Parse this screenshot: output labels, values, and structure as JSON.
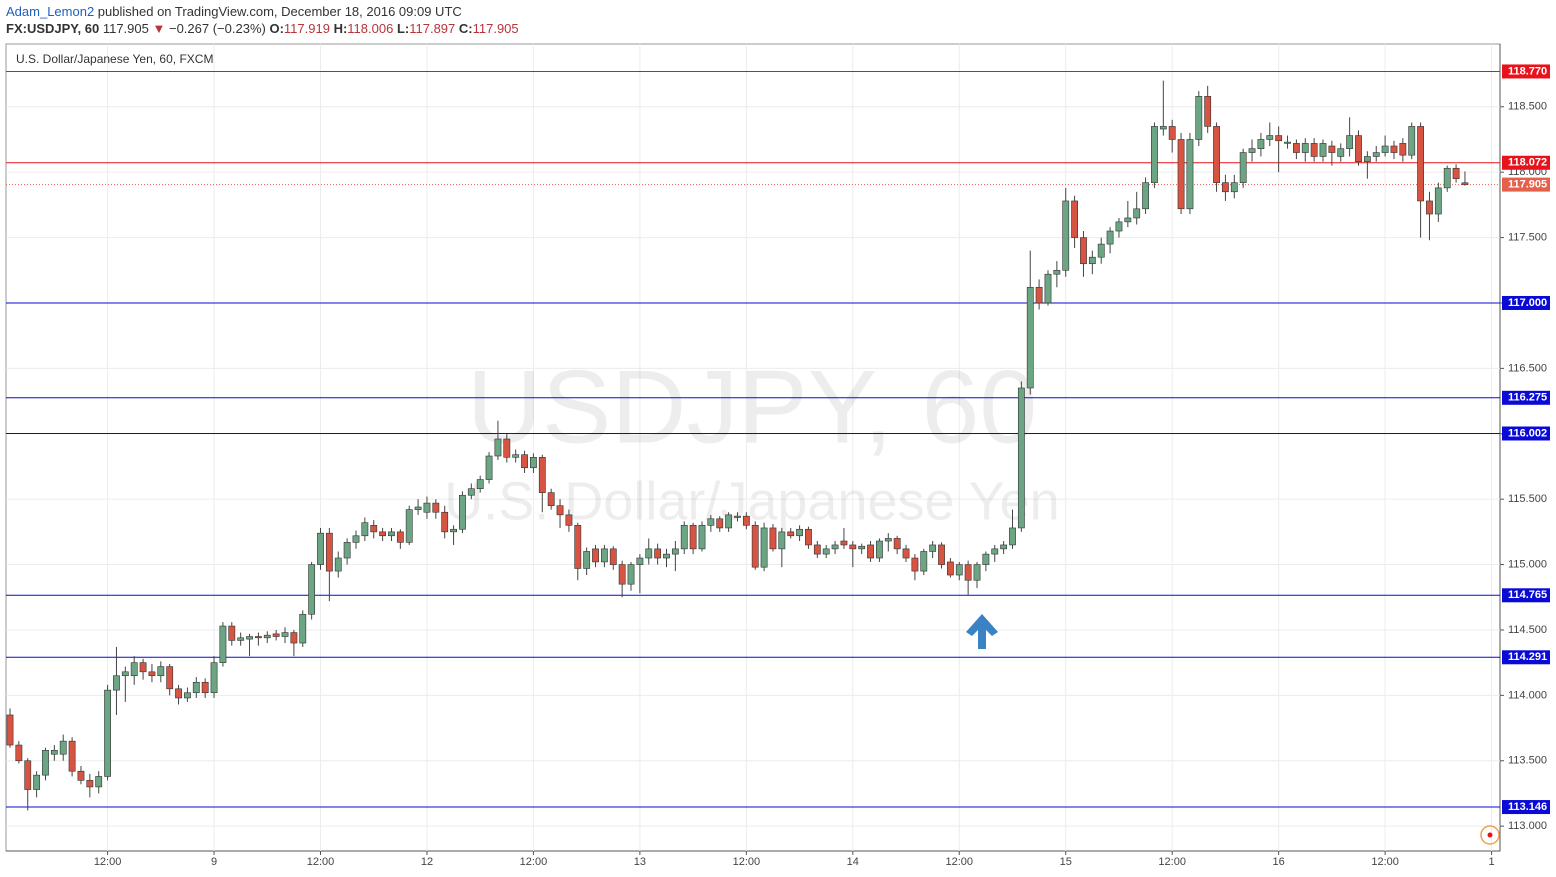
{
  "header": {
    "author": "Adam_Lemon2",
    "published": "published on TradingView.com, December 18, 2016 09:09 UTC",
    "symbol": "FX:USDJPY, 60",
    "last": "117.905",
    "change_icon": "▼",
    "change": "−0.267 (−0.23%)",
    "ohlc": [
      {
        "label": "O:",
        "value": "117.919"
      },
      {
        "label": "H:",
        "value": "118.006"
      },
      {
        "label": "L:",
        "value": "117.897"
      },
      {
        "label": "C:",
        "value": "117.905"
      }
    ]
  },
  "chart_data": {
    "type": "candlestick",
    "title": "U.S. Dollar/Japanese Yen, 60, FXCM",
    "watermark": "USDJPY, 60",
    "watermark_sub": "U.S. Dollar/Japanese Yen",
    "up_color": "#6ba583",
    "down_color": "#d75442",
    "grid": true,
    "ylim": [
      112.81,
      118.98
    ],
    "yticks": [
      {
        "value": 113,
        "label": "113.000"
      },
      {
        "value": 113.5,
        "label": "113.500"
      },
      {
        "value": 114,
        "label": "114.000"
      },
      {
        "value": 114.5,
        "label": "114.500"
      },
      {
        "value": 115,
        "label": "115.000"
      },
      {
        "value": 115.5,
        "label": "115.500"
      },
      {
        "value": 116,
        "label": "116.000"
      },
      {
        "value": 116.5,
        "label": "116.500"
      },
      {
        "value": 117,
        "label": "117.000"
      },
      {
        "value": 117.5,
        "label": "117.500"
      },
      {
        "value": 118,
        "label": "118.000"
      },
      {
        "value": 118.5,
        "label": "118.500"
      }
    ],
    "xlim": [
      -0.45,
      167.95
    ],
    "xticks": [
      {
        "value": 11,
        "label": "12:00"
      },
      {
        "value": 23,
        "label": "9"
      },
      {
        "value": 35,
        "label": "12:00"
      },
      {
        "value": 47,
        "label": "12"
      },
      {
        "value": 59,
        "label": "12:00"
      },
      {
        "value": 71,
        "label": "13"
      },
      {
        "value": 83,
        "label": "12:00"
      },
      {
        "value": 95,
        "label": "14"
      },
      {
        "value": 107,
        "label": "12:00"
      },
      {
        "value": 119,
        "label": "15"
      },
      {
        "value": 131,
        "label": "12:00"
      },
      {
        "value": 143,
        "label": "16"
      },
      {
        "value": 155,
        "label": "12:00"
      },
      {
        "value": 167,
        "label": "1"
      }
    ],
    "levels": [
      {
        "value": 118.77,
        "label": "118.770",
        "color": "#e8121b"
      },
      {
        "value": 118.072,
        "label": "118.072",
        "color": "#e8121b"
      },
      {
        "value": 117.905,
        "label": "117.905",
        "color": "#e5604a",
        "dotted": true
      },
      {
        "value": 117,
        "label": "117.000",
        "color": "#0a0ad6"
      },
      {
        "value": 116.275,
        "label": "116.275",
        "color": "#0a0ad6"
      },
      {
        "value": 116.002,
        "label": "116.002",
        "color": "#0a0ad6"
      },
      {
        "value": 114.765,
        "label": "114.765",
        "color": "#0a0ad6"
      },
      {
        "value": 114.291,
        "label": "114.291",
        "color": "#0a0ad6"
      },
      {
        "value": 113.146,
        "label": "113.146",
        "color": "#0a0ad6"
      }
    ],
    "ohlc": [
      [
        113.85,
        113.9,
        113.6,
        113.62
      ],
      [
        113.62,
        113.65,
        113.48,
        113.5
      ],
      [
        113.5,
        113.52,
        113.12,
        113.28
      ],
      [
        113.28,
        113.42,
        113.22,
        113.39
      ],
      [
        113.39,
        113.6,
        113.35,
        113.58
      ],
      [
        113.55,
        113.62,
        113.5,
        113.58
      ],
      [
        113.55,
        113.7,
        113.5,
        113.65
      ],
      [
        113.65,
        113.68,
        113.38,
        113.42
      ],
      [
        113.42,
        113.46,
        113.32,
        113.35
      ],
      [
        113.35,
        113.4,
        113.22,
        113.3
      ],
      [
        113.3,
        113.42,
        113.25,
        113.38
      ],
      [
        113.38,
        114.08,
        113.35,
        114.04
      ],
      [
        114.04,
        114.37,
        113.85,
        114.15
      ],
      [
        114.15,
        114.22,
        113.95,
        114.18
      ],
      [
        114.15,
        114.3,
        114.08,
        114.25
      ],
      [
        114.25,
        114.28,
        114.12,
        114.18
      ],
      [
        114.18,
        114.24,
        114.1,
        114.15
      ],
      [
        114.15,
        114.26,
        114.1,
        114.22
      ],
      [
        114.22,
        114.24,
        114.0,
        114.05
      ],
      [
        114.05,
        114.08,
        113.93,
        113.98
      ],
      [
        113.98,
        114.06,
        113.95,
        114.02
      ],
      [
        114.02,
        114.14,
        113.98,
        114.1
      ],
      [
        114.1,
        114.13,
        113.98,
        114.02
      ],
      [
        114.02,
        114.3,
        113.98,
        114.25
      ],
      [
        114.25,
        114.56,
        114.22,
        114.53
      ],
      [
        114.53,
        114.56,
        114.38,
        114.42
      ],
      [
        114.42,
        114.48,
        114.38,
        114.44
      ],
      [
        114.43,
        114.47,
        114.3,
        114.45
      ],
      [
        114.45,
        114.48,
        114.38,
        114.44
      ],
      [
        114.44,
        114.49,
        114.4,
        114.46
      ],
      [
        114.47,
        114.5,
        114.42,
        114.45
      ],
      [
        114.45,
        114.52,
        114.4,
        114.48
      ],
      [
        114.48,
        114.5,
        114.3,
        114.4
      ],
      [
        114.4,
        114.65,
        114.37,
        114.62
      ],
      [
        114.62,
        115.02,
        114.58,
        115.0
      ],
      [
        115.0,
        115.28,
        114.96,
        115.24
      ],
      [
        115.24,
        115.28,
        114.72,
        114.95
      ],
      [
        114.95,
        115.1,
        114.9,
        115.05
      ],
      [
        115.05,
        115.2,
        115.0,
        115.17
      ],
      [
        115.17,
        115.26,
        115.12,
        115.22
      ],
      [
        115.22,
        115.36,
        115.18,
        115.32
      ],
      [
        115.3,
        115.34,
        115.2,
        115.25
      ],
      [
        115.25,
        115.28,
        115.18,
        115.22
      ],
      [
        115.22,
        115.28,
        115.18,
        115.25
      ],
      [
        115.25,
        115.27,
        115.12,
        115.17
      ],
      [
        115.17,
        115.45,
        115.15,
        115.42
      ],
      [
        115.42,
        115.5,
        115.38,
        115.44
      ],
      [
        115.4,
        115.52,
        115.35,
        115.47
      ],
      [
        115.47,
        115.5,
        115.35,
        115.4
      ],
      [
        115.4,
        115.45,
        115.2,
        115.25
      ],
      [
        115.25,
        115.3,
        115.15,
        115.27
      ],
      [
        115.27,
        115.56,
        115.24,
        115.53
      ],
      [
        115.53,
        115.62,
        115.5,
        115.58
      ],
      [
        115.58,
        115.68,
        115.55,
        115.65
      ],
      [
        115.65,
        115.86,
        115.62,
        115.83
      ],
      [
        115.83,
        116.1,
        115.8,
        115.96
      ],
      [
        115.96,
        116.0,
        115.78,
        115.82
      ],
      [
        115.82,
        115.88,
        115.78,
        115.84
      ],
      [
        115.84,
        115.87,
        115.7,
        115.74
      ],
      [
        115.74,
        115.85,
        115.7,
        115.82
      ],
      [
        115.82,
        115.84,
        115.4,
        115.55
      ],
      [
        115.55,
        115.58,
        115.42,
        115.45
      ],
      [
        115.45,
        115.5,
        115.28,
        115.38
      ],
      [
        115.38,
        115.42,
        115.25,
        115.3
      ],
      [
        115.3,
        115.32,
        114.88,
        114.97
      ],
      [
        114.97,
        115.13,
        114.92,
        115.1
      ],
      [
        115.12,
        115.15,
        114.98,
        115.02
      ],
      [
        115.02,
        115.15,
        114.98,
        115.12
      ],
      [
        115.12,
        115.14,
        114.96,
        115.0
      ],
      [
        115.0,
        115.03,
        114.75,
        114.85
      ],
      [
        114.85,
        115.02,
        114.8,
        115.0
      ],
      [
        115.0,
        115.08,
        114.78,
        115.05
      ],
      [
        115.05,
        115.2,
        115.0,
        115.12
      ],
      [
        115.12,
        115.16,
        115.0,
        115.05
      ],
      [
        115.05,
        115.12,
        114.98,
        115.08
      ],
      [
        115.08,
        115.18,
        114.95,
        115.12
      ],
      [
        115.12,
        115.33,
        115.08,
        115.3
      ],
      [
        115.3,
        115.32,
        115.08,
        115.12
      ],
      [
        115.12,
        115.33,
        115.1,
        115.3
      ],
      [
        115.3,
        115.38,
        115.25,
        115.35
      ],
      [
        115.35,
        115.37,
        115.25,
        115.28
      ],
      [
        115.28,
        115.4,
        115.25,
        115.38
      ],
      [
        115.36,
        115.4,
        115.33,
        115.37
      ],
      [
        115.37,
        115.4,
        115.27,
        115.3
      ],
      [
        115.3,
        115.33,
        114.96,
        114.98
      ],
      [
        114.98,
        115.32,
        114.95,
        115.28
      ],
      [
        115.28,
        115.31,
        115.1,
        115.12
      ],
      [
        115.12,
        115.28,
        114.98,
        115.25
      ],
      [
        115.25,
        115.28,
        115.2,
        115.22
      ],
      [
        115.22,
        115.3,
        115.18,
        115.27
      ],
      [
        115.27,
        115.29,
        115.12,
        115.15
      ],
      [
        115.15,
        115.18,
        115.05,
        115.08
      ],
      [
        115.08,
        115.15,
        115.05,
        115.12
      ],
      [
        115.12,
        115.18,
        115.08,
        115.15
      ],
      [
        115.18,
        115.28,
        115.12,
        115.15
      ],
      [
        115.15,
        115.18,
        114.98,
        115.12
      ],
      [
        115.12,
        115.16,
        115.08,
        115.14
      ],
      [
        115.15,
        115.18,
        115.02,
        115.05
      ],
      [
        115.05,
        115.2,
        115.02,
        115.18
      ],
      [
        115.18,
        115.24,
        115.1,
        115.2
      ],
      [
        115.2,
        115.22,
        115.08,
        115.12
      ],
      [
        115.12,
        115.15,
        115.02,
        115.05
      ],
      [
        115.05,
        115.08,
        114.88,
        114.95
      ],
      [
        114.95,
        115.12,
        114.92,
        115.1
      ],
      [
        115.1,
        115.18,
        115.05,
        115.15
      ],
      [
        115.15,
        115.17,
        114.97,
        115.0
      ],
      [
        115.02,
        115.05,
        114.9,
        114.92
      ],
      [
        114.92,
        115.02,
        114.88,
        115.0
      ],
      [
        115.0,
        115.03,
        114.77,
        114.88
      ],
      [
        114.88,
        115.02,
        114.82,
        115.0
      ],
      [
        115.0,
        115.1,
        114.95,
        115.08
      ],
      [
        115.08,
        115.15,
        115.02,
        115.12
      ],
      [
        115.12,
        115.18,
        115.08,
        115.15
      ],
      [
        115.15,
        115.42,
        115.12,
        115.28
      ],
      [
        115.28,
        116.4,
        115.25,
        116.35
      ],
      [
        116.35,
        117.4,
        116.3,
        117.12
      ],
      [
        117.12,
        117.18,
        116.95,
        117.0
      ],
      [
        117.0,
        117.25,
        116.98,
        117.22
      ],
      [
        117.22,
        117.32,
        117.12,
        117.25
      ],
      [
        117.25,
        117.88,
        117.2,
        117.78
      ],
      [
        117.78,
        117.82,
        117.42,
        117.5
      ],
      [
        117.5,
        117.55,
        117.2,
        117.3
      ],
      [
        117.3,
        117.4,
        117.22,
        117.35
      ],
      [
        117.35,
        117.5,
        117.3,
        117.45
      ],
      [
        117.45,
        117.58,
        117.38,
        117.55
      ],
      [
        117.55,
        117.65,
        117.5,
        117.62
      ],
      [
        117.62,
        117.78,
        117.58,
        117.65
      ],
      [
        117.65,
        117.85,
        117.6,
        117.72
      ],
      [
        117.72,
        117.96,
        117.68,
        117.92
      ],
      [
        117.92,
        118.38,
        117.88,
        118.35
      ],
      [
        118.33,
        118.7,
        118.28,
        118.35
      ],
      [
        118.35,
        118.4,
        118.15,
        118.25
      ],
      [
        118.25,
        118.3,
        117.68,
        117.72
      ],
      [
        117.72,
        118.3,
        117.68,
        118.25
      ],
      [
        118.25,
        118.62,
        118.2,
        118.58
      ],
      [
        118.58,
        118.66,
        118.3,
        118.35
      ],
      [
        118.35,
        118.38,
        117.85,
        117.92
      ],
      [
        117.92,
        117.98,
        117.78,
        117.85
      ],
      [
        117.85,
        117.98,
        117.8,
        117.92
      ],
      [
        117.92,
        118.18,
        117.88,
        118.15
      ],
      [
        118.15,
        118.25,
        118.08,
        118.18
      ],
      [
        118.18,
        118.3,
        118.12,
        118.25
      ],
      [
        118.25,
        118.38,
        118.2,
        118.28
      ],
      [
        118.28,
        118.35,
        118.0,
        118.24
      ],
      [
        118.22,
        118.28,
        118.18,
        118.23
      ],
      [
        118.22,
        118.25,
        118.1,
        118.15
      ],
      [
        118.15,
        118.26,
        118.08,
        118.22
      ],
      [
        118.22,
        118.26,
        118.08,
        118.12
      ],
      [
        118.12,
        118.25,
        118.08,
        118.22
      ],
      [
        118.2,
        118.24,
        118.05,
        118.15
      ],
      [
        118.12,
        118.22,
        118.08,
        118.18
      ],
      [
        118.18,
        118.42,
        118.12,
        118.28
      ],
      [
        118.28,
        118.32,
        118.05,
        118.08
      ],
      [
        118.08,
        118.16,
        117.95,
        118.12
      ],
      [
        118.12,
        118.2,
        118.08,
        118.15
      ],
      [
        118.15,
        118.28,
        118.12,
        118.2
      ],
      [
        118.2,
        118.24,
        118.1,
        118.15
      ],
      [
        118.22,
        118.26,
        118.08,
        118.13
      ],
      [
        118.13,
        118.38,
        118.1,
        118.35
      ],
      [
        118.35,
        118.38,
        117.5,
        117.78
      ],
      [
        117.78,
        117.85,
        117.48,
        117.68
      ],
      [
        117.68,
        117.92,
        117.62,
        117.88
      ],
      [
        117.88,
        118.05,
        117.85,
        118.03
      ],
      [
        118.03,
        118.06,
        117.92,
        117.95
      ],
      [
        117.919,
        118.006,
        117.897,
        117.905
      ]
    ]
  }
}
